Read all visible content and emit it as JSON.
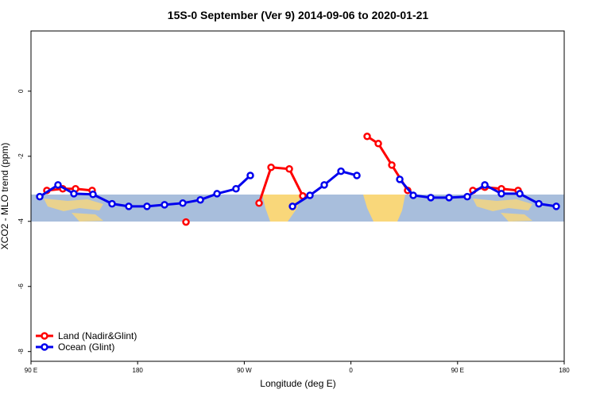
{
  "chart_data": {
    "type": "line",
    "title": "15S-0 September (Ver 9)   2014-09-06 to 2020-01-21",
    "x_label": "Longitude (deg E)",
    "y_label": "XCO2 - MLO trend (ppm)",
    "xlim": [
      90,
      540
    ],
    "ylim": [
      -8.3,
      1.85
    ],
    "xticks": [
      {
        "value": 90,
        "label": "90 E"
      },
      180,
      {
        "value": 270,
        "label": "90 W"
      },
      {
        "value": 360,
        "label": "0"
      },
      {
        "value": 450,
        "label": "90 E"
      },
      {
        "value": 540,
        "label": "180"
      }
    ],
    "yticks": [
      0,
      -2,
      -4,
      -6,
      -8
    ],
    "legend": "bottom-left",
    "series": [
      {
        "name": "Land (Nadir&Glint)",
        "color": "#ff0000",
        "x": [
          103.4,
          116.8,
          127.6,
          141.6,
          null,
          220.8,
          null,
          282.5,
          292.6,
          308,
          319.4,
          null,
          373.7,
          383.1,
          394.5,
          407.9,
          null,
          462.9,
          473,
          487,
          501.1
        ],
        "values": [
          -3.05,
          -3.0,
          -3.0,
          -3.05,
          null,
          -4.02,
          null,
          -3.44,
          -2.34,
          -2.39,
          -3.22,
          null,
          -1.39,
          -1.61,
          -2.27,
          -3.05,
          null,
          -3.05,
          -2.95,
          -3.0,
          -3.05
        ]
      },
      {
        "name": "Ocean (Glint)",
        "color": "#0000ee",
        "x": [
          97.4,
          112.8,
          126.2,
          142.3,
          158.4,
          172.5,
          187.9,
          202.7,
          218.1,
          232.9,
          247,
          263,
          275.1,
          null,
          310.7,
          325.4,
          337.5,
          351.6,
          365,
          null,
          401.2,
          412.6,
          427.4,
          442.8,
          458.2,
          473,
          487,
          502.5,
          518.6,
          533.3
        ],
        "values": [
          -3.24,
          -2.88,
          -3.15,
          -3.17,
          -3.46,
          -3.54,
          -3.54,
          -3.49,
          -3.44,
          -3.34,
          -3.15,
          -3.0,
          -2.59,
          null,
          -3.54,
          -3.2,
          -2.88,
          -2.46,
          -2.59,
          null,
          -2.71,
          -3.2,
          -3.27,
          -3.27,
          -3.24,
          -2.88,
          -3.15,
          -3.15,
          -3.46,
          -3.54
        ]
      }
    ]
  }
}
